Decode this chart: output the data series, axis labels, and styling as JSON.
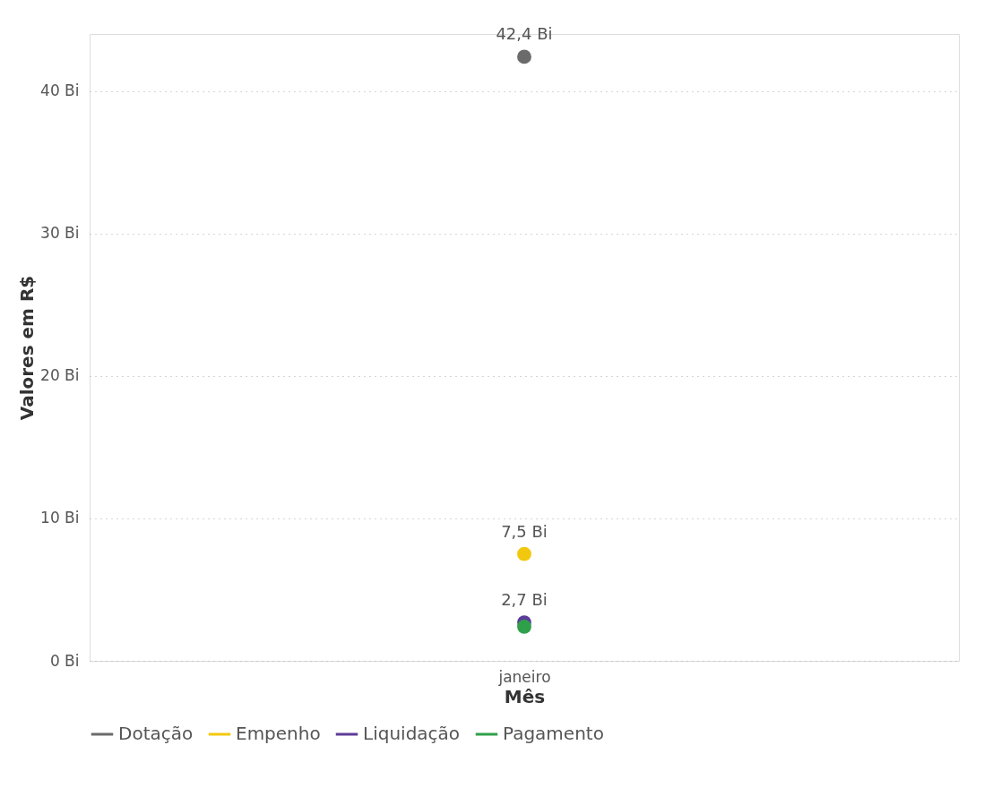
{
  "chart_data": {
    "type": "line",
    "xlabel": "Mês",
    "ylabel": "Valores em R$",
    "categories": [
      "janeiro"
    ],
    "series": [
      {
        "name": "Dotação",
        "color": "#6b6b6b",
        "values": [
          42.4
        ],
        "value_labels": [
          "42,4 Bi"
        ]
      },
      {
        "name": "Empenho",
        "color": "#f2c80f",
        "values": [
          7.5
        ],
        "value_labels": [
          "7,5 Bi"
        ]
      },
      {
        "name": "Liquidação",
        "color": "#5c3d99",
        "values": [
          2.7
        ],
        "value_labels": [
          "2,7 Bi"
        ]
      },
      {
        "name": "Pagamento",
        "color": "#2ea04a",
        "values": [
          2.4
        ],
        "value_labels": [
          null
        ]
      }
    ],
    "ylim": [
      0,
      44
    ],
    "yticks": [
      {
        "value": 0,
        "label": "0 Bi"
      },
      {
        "value": 10,
        "label": "10 Bi"
      },
      {
        "value": 20,
        "label": "20 Bi"
      },
      {
        "value": 30,
        "label": "30 Bi"
      },
      {
        "value": 40,
        "label": "40 Bi"
      }
    ],
    "grid": "y",
    "legend": "bottom",
    "marker": "circle"
  }
}
